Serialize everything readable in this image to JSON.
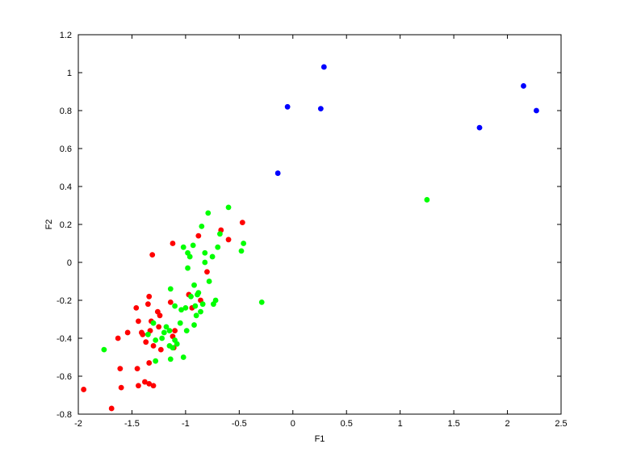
{
  "chart_data": {
    "type": "scatter",
    "title": "",
    "xlabel": "F1",
    "ylabel": "F2",
    "xlim": [
      -2,
      2.5
    ],
    "ylim": [
      -0.8,
      1.2
    ],
    "xticks": [
      "-2",
      "-1.5",
      "-1",
      "-0.5",
      "0",
      "0.5",
      "1",
      "1.5",
      "2",
      "2.5"
    ],
    "yticks": [
      "-0.8",
      "-0.6",
      "-0.4",
      "-0.2",
      "0",
      "0.2",
      "0.4",
      "0.6",
      "0.8",
      "1",
      "1.2"
    ],
    "grid": false,
    "series": [
      {
        "color": "#ff0000",
        "points": [
          [
            -1.95,
            -0.67
          ],
          [
            -1.69,
            -0.77
          ],
          [
            -1.63,
            -0.4
          ],
          [
            -1.61,
            -0.56
          ],
          [
            -1.6,
            -0.66
          ],
          [
            -1.54,
            -0.37
          ],
          [
            -1.46,
            -0.24
          ],
          [
            -1.45,
            -0.56
          ],
          [
            -1.44,
            -0.31
          ],
          [
            -1.41,
            -0.37
          ],
          [
            -1.4,
            -0.38
          ],
          [
            -1.38,
            -0.63
          ],
          [
            -1.37,
            -0.42
          ],
          [
            -1.35,
            -0.22
          ],
          [
            -1.34,
            -0.18
          ],
          [
            -1.34,
            -0.53
          ],
          [
            -1.33,
            -0.36
          ],
          [
            -1.32,
            -0.31
          ],
          [
            -1.3,
            -0.44
          ],
          [
            -1.3,
            -0.65
          ],
          [
            -1.31,
            0.04
          ],
          [
            -1.26,
            -0.26
          ],
          [
            -1.25,
            -0.34
          ],
          [
            -1.24,
            -0.28
          ],
          [
            -1.23,
            -0.46
          ],
          [
            -1.14,
            -0.21
          ],
          [
            -1.12,
            0.1
          ],
          [
            -1.12,
            -0.39
          ],
          [
            -1.11,
            -0.45
          ],
          [
            -1.1,
            -0.36
          ],
          [
            -0.97,
            -0.17
          ],
          [
            -0.94,
            -0.24
          ],
          [
            -0.88,
            0.14
          ],
          [
            -0.86,
            -0.2
          ],
          [
            -0.8,
            -0.05
          ],
          [
            -0.67,
            0.17
          ],
          [
            -0.6,
            0.12
          ],
          [
            -0.47,
            0.21
          ],
          [
            -1.44,
            -0.65
          ],
          [
            -1.34,
            -0.64
          ]
        ]
      },
      {
        "color": "#00ff00",
        "points": [
          [
            -1.76,
            -0.46
          ],
          [
            -1.35,
            -0.38
          ],
          [
            -1.3,
            -0.32
          ],
          [
            -1.28,
            -0.41
          ],
          [
            -1.22,
            -0.4
          ],
          [
            -1.2,
            -0.37
          ],
          [
            -1.18,
            -0.34
          ],
          [
            -1.15,
            -0.36
          ],
          [
            -1.15,
            -0.44
          ],
          [
            -1.14,
            -0.14
          ],
          [
            -1.12,
            -0.45
          ],
          [
            -1.1,
            -0.41
          ],
          [
            -1.1,
            -0.23
          ],
          [
            -1.08,
            -0.43
          ],
          [
            -1.05,
            -0.32
          ],
          [
            -1.04,
            -0.25
          ],
          [
            -1.02,
            -0.5
          ],
          [
            -1.02,
            0.08
          ],
          [
            -1.0,
            -0.24
          ],
          [
            -0.99,
            -0.36
          ],
          [
            -0.98,
            0.05
          ],
          [
            -0.98,
            -0.03
          ],
          [
            -0.96,
            0.03
          ],
          [
            -0.95,
            -0.18
          ],
          [
            -0.93,
            0.09
          ],
          [
            -0.92,
            -0.33
          ],
          [
            -0.92,
            -0.12
          ],
          [
            -0.91,
            -0.23
          ],
          [
            -0.9,
            -0.28
          ],
          [
            -0.89,
            -0.17
          ],
          [
            -0.88,
            -0.16
          ],
          [
            -0.86,
            -0.26
          ],
          [
            -0.85,
            0.19
          ],
          [
            -0.84,
            -0.22
          ],
          [
            -0.82,
            0.0
          ],
          [
            -0.82,
            0.05
          ],
          [
            -0.79,
            0.26
          ],
          [
            -0.78,
            -0.1
          ],
          [
            -0.75,
            0.03
          ],
          [
            -0.74,
            -0.22
          ],
          [
            -0.72,
            -0.2
          ],
          [
            -0.7,
            0.08
          ],
          [
            -0.68,
            0.15
          ],
          [
            -0.6,
            0.29
          ],
          [
            -0.48,
            0.06
          ],
          [
            -0.46,
            0.1
          ],
          [
            -0.29,
            -0.21
          ],
          [
            1.25,
            0.33
          ],
          [
            -1.14,
            -0.51
          ],
          [
            -1.28,
            -0.52
          ]
        ]
      },
      {
        "color": "#0000ff",
        "points": [
          [
            -0.14,
            0.47
          ],
          [
            -0.05,
            0.82
          ],
          [
            0.26,
            0.81
          ],
          [
            0.29,
            1.03
          ],
          [
            1.74,
            0.71
          ],
          [
            2.15,
            0.93
          ],
          [
            2.27,
            0.8
          ]
        ]
      }
    ]
  }
}
